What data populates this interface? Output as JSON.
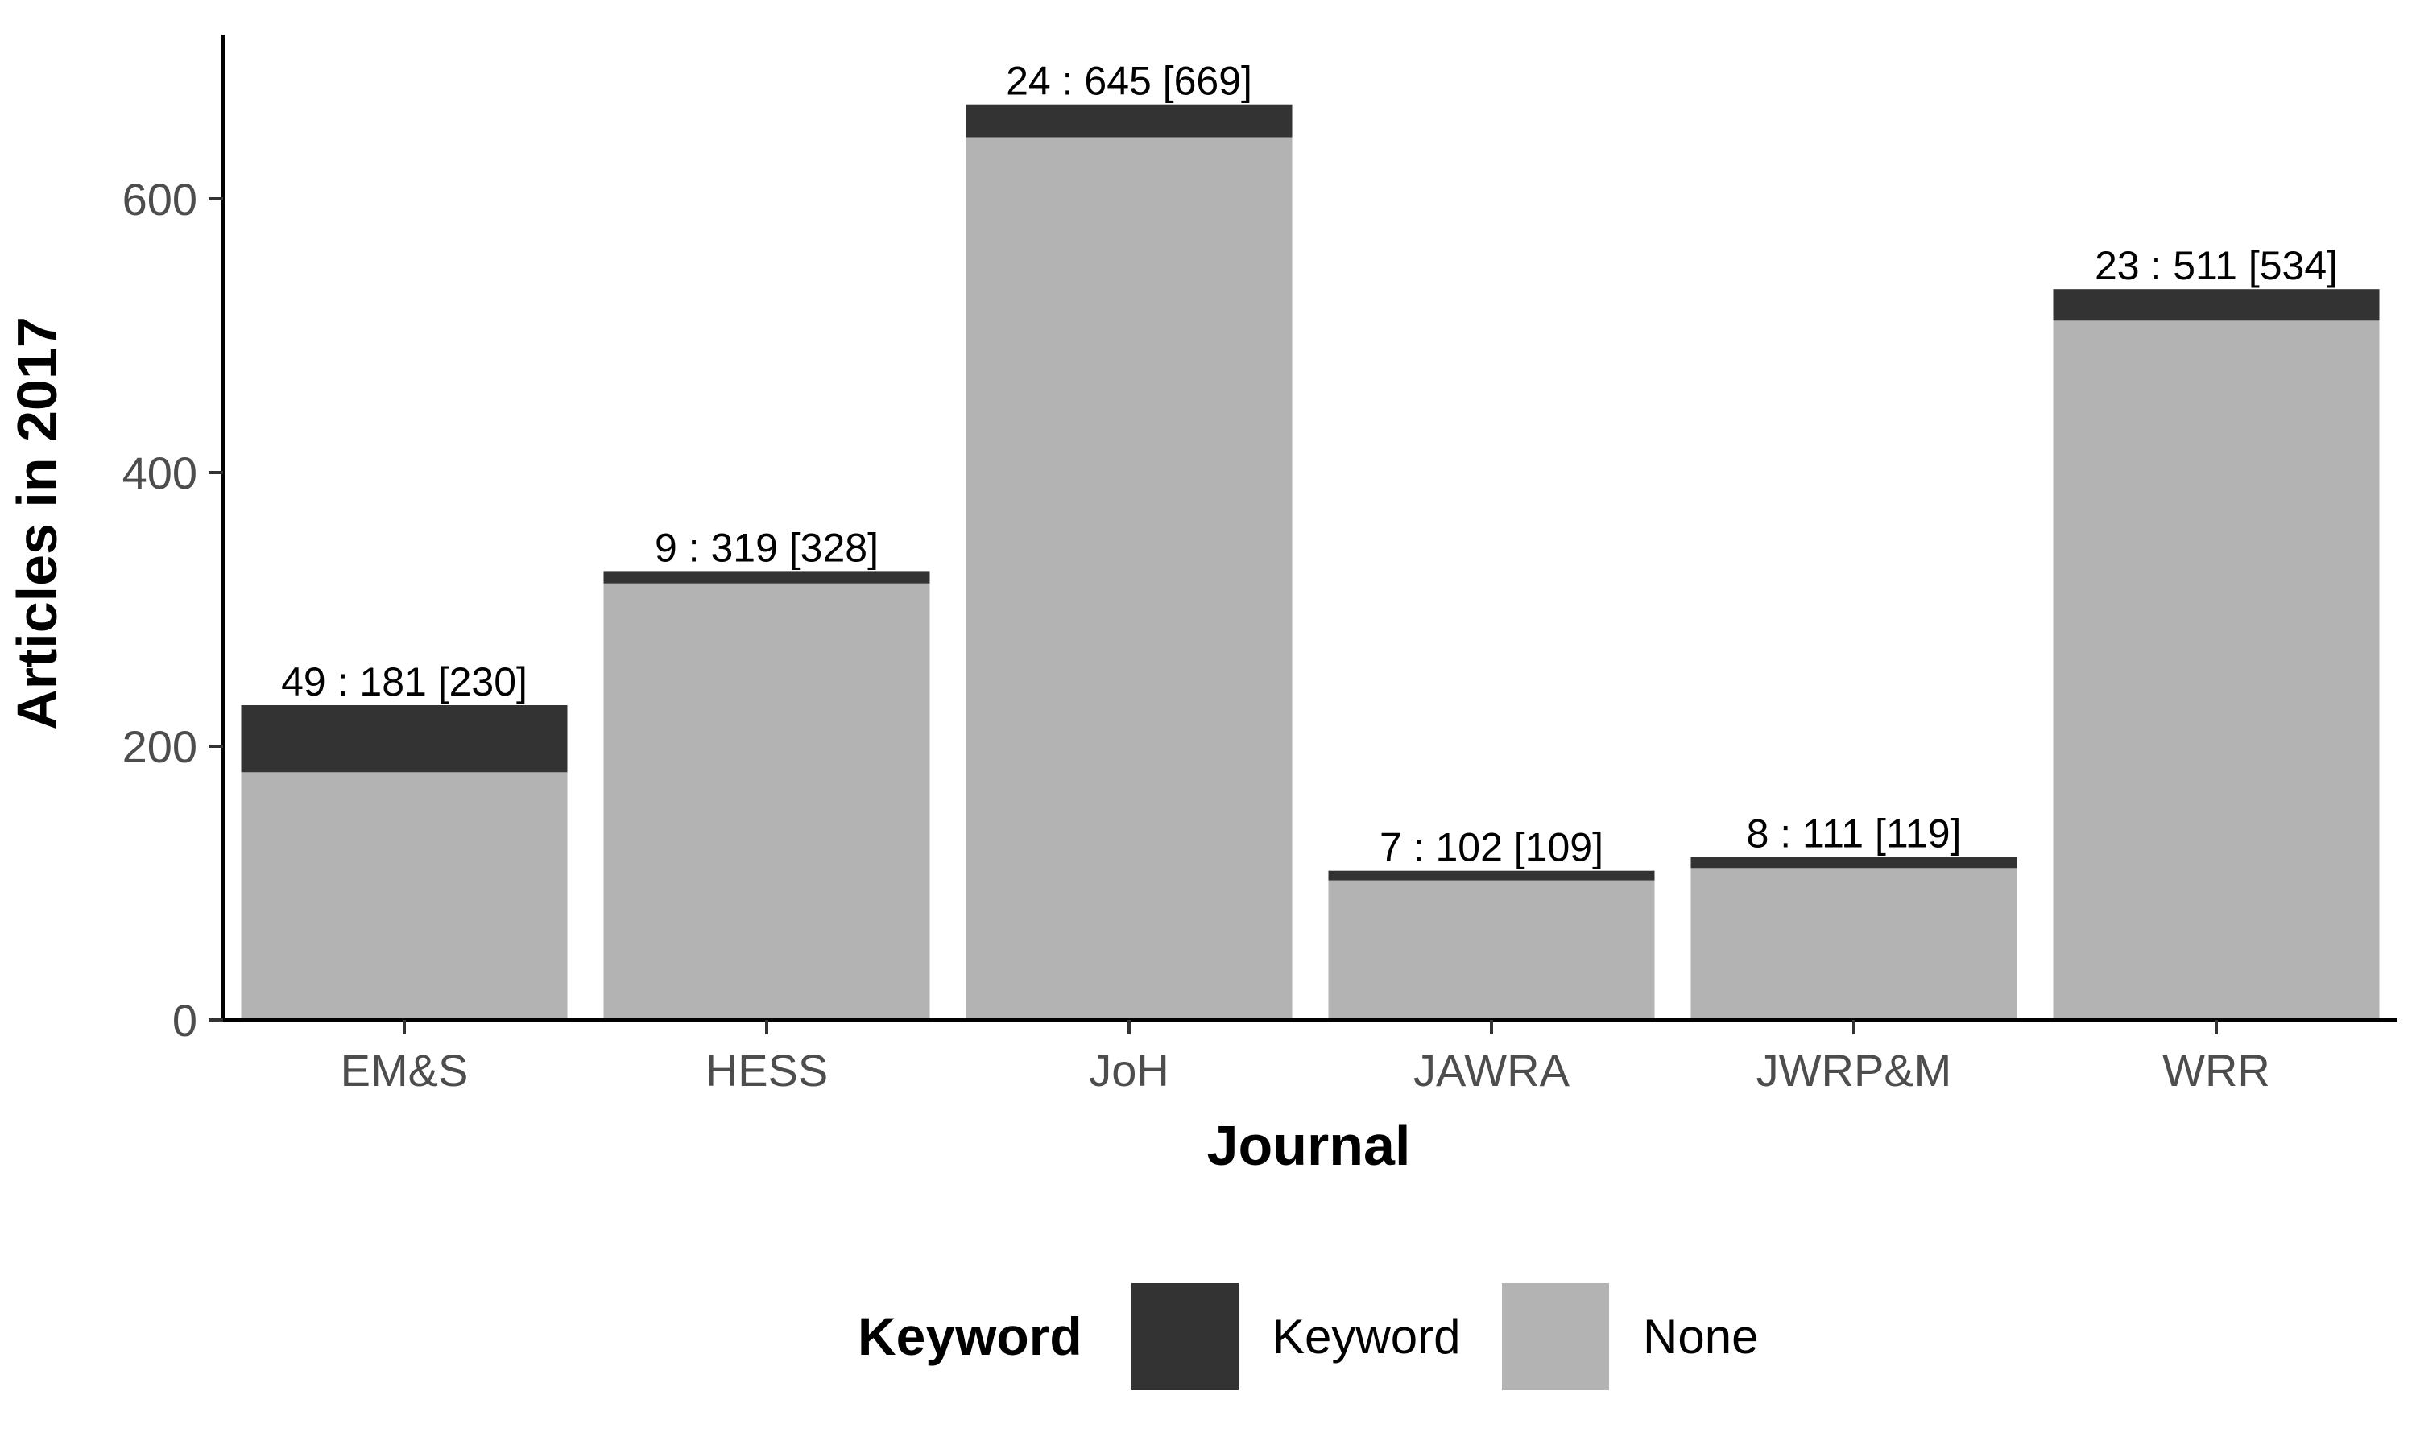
{
  "chart_data": {
    "type": "bar",
    "stacked": true,
    "xlabel": "Journal",
    "ylabel": "Articles in 2017",
    "ylim": [
      0,
      720
    ],
    "yticks": [
      0,
      200,
      400,
      600
    ],
    "grid": false,
    "categories": [
      "EM&S",
      "HESS",
      "JoH",
      "JAWRA",
      "JWRP&M",
      "WRR"
    ],
    "series": [
      {
        "name": "None",
        "color": "#b3b3b3",
        "values": [
          181,
          319,
          645,
          102,
          111,
          511
        ]
      },
      {
        "name": "Keyword",
        "color": "#333333",
        "values": [
          49,
          9,
          24,
          7,
          8,
          23
        ]
      }
    ],
    "bar_labels": [
      "49 : 181 [230]",
      "9 : 319 [328]",
      "24 : 645 [669]",
      "7 : 102 [109]",
      "8 : 111 [119]",
      "23 : 511 [534]"
    ],
    "legend": {
      "title": "Keyword",
      "placement": "bottom",
      "items": [
        {
          "label": "Keyword",
          "color": "#333333"
        },
        {
          "label": "None",
          "color": "#b3b3b3"
        }
      ]
    }
  }
}
